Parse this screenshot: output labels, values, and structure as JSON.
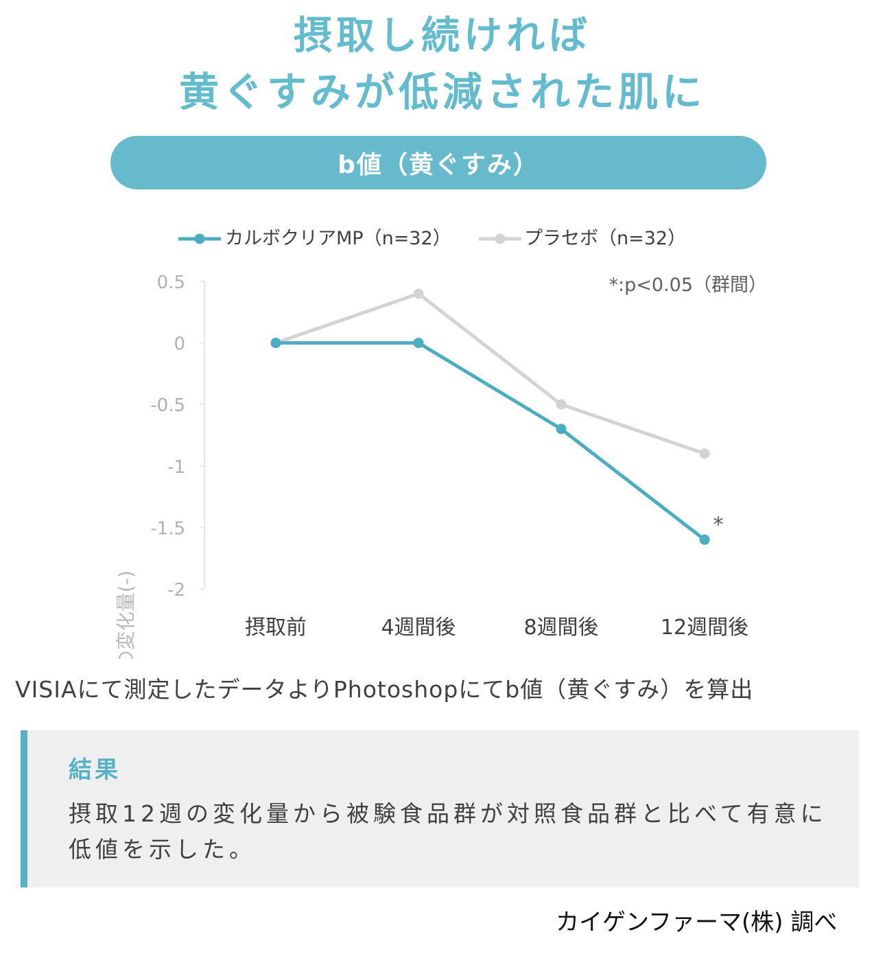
{
  "headline": {
    "line1": "摂取し続ければ",
    "line2": "黄ぐすみが低減された肌に"
  },
  "chart_label": "b値（黄ぐすみ）",
  "chart_data": {
    "type": "line",
    "categories": [
      "摂取前",
      "4週間後",
      "8週間後",
      "12週間後"
    ],
    "series": [
      {
        "name": "カルボクリアMP（n=32）",
        "values": [
          0,
          0,
          -0.7,
          -1.6
        ],
        "color": "#4aaec0"
      },
      {
        "name": "プラセボ（n=32）",
        "values": [
          0,
          0.4,
          -0.5,
          -0.9
        ],
        "color": "#d3d3d3"
      }
    ],
    "ylabel": "b値の変化量(-)",
    "ylim": [
      -2,
      0.5
    ],
    "yticks": [
      0.5,
      0,
      -0.5,
      -1,
      -1.5,
      -2
    ],
    "ytick_labels": [
      "0.5",
      "0",
      "-0.5",
      "-1",
      "-1.5",
      "-2"
    ],
    "significance_note": "*:p<0.05（群間）",
    "significance_marker": "*",
    "legend_position": "top-left",
    "grid": false
  },
  "caption": "VISIAにて測定したデータよりPhotoshopにてb値（黄ぐすみ）を算出",
  "result": {
    "title": "結果",
    "text": "摂取12週の変化量から被験食品群が対照食品群と比べて有意に低値を示した。"
  },
  "credit": "カイゲンファーマ(株) 調べ"
}
